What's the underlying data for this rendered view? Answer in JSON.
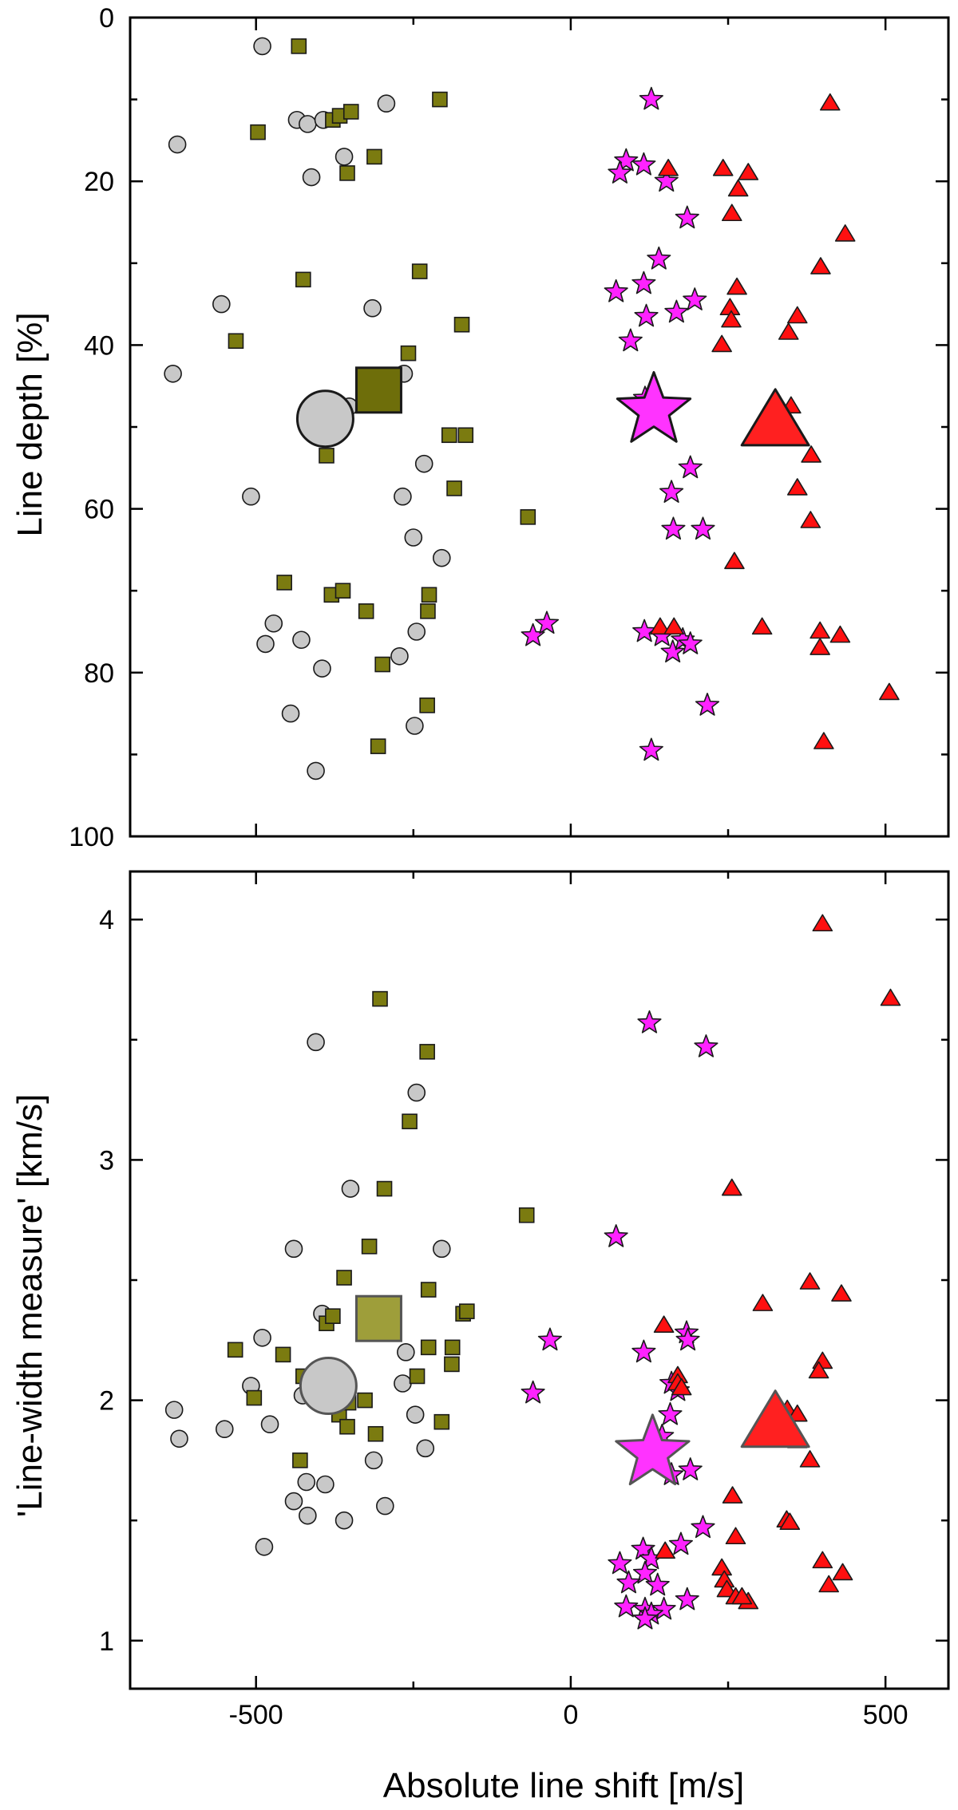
{
  "colors": {
    "circle": "#c8c8c8",
    "square": "#7b7b10",
    "star": "#ff22ff",
    "triangle": "#ff1010",
    "mean_circle": "#c8c8c8",
    "mean_square_top": "#6e6e0a",
    "mean_square_bottom": "#9e9e3a",
    "mean_star": "#ff33ff",
    "mean_triangle": "#ff2020"
  },
  "chart_data": [
    {
      "type": "scatter",
      "panel": "top",
      "xlabel": "",
      "ylabel": "Line depth [%]",
      "xlim": [
        -700,
        600
      ],
      "ylim": [
        100,
        0
      ],
      "y_inverted": true,
      "xticks": [
        -500,
        0,
        500
      ],
      "xtick_labels_visible": false,
      "yticks": [
        0,
        20,
        40,
        60,
        80,
        100
      ],
      "ytick_labels": [
        "0",
        "20",
        "40",
        "60",
        "80",
        "100"
      ],
      "grid": false,
      "series": [
        {
          "marker": "circle",
          "points": [
            [
              -490,
              3.5
            ],
            [
              -625,
              15.5
            ],
            [
              -435,
              12.5
            ],
            [
              -418,
              13
            ],
            [
              -393,
              12.5
            ],
            [
              -293,
              10.5
            ],
            [
              -360,
              17
            ],
            [
              -412,
              19.5
            ],
            [
              -555,
              35
            ],
            [
              -315,
              35.5
            ],
            [
              -632,
              43.5
            ],
            [
              -265,
              43.5
            ],
            [
              -352,
              47.5
            ],
            [
              -508,
              58.5
            ],
            [
              -267,
              58.5
            ],
            [
              -233,
              54.5
            ],
            [
              -250,
              63.5
            ],
            [
              -205,
              66
            ],
            [
              -472,
              74
            ],
            [
              -485,
              76.5
            ],
            [
              -428,
              76
            ],
            [
              -395,
              79.5
            ],
            [
              -272,
              78
            ],
            [
              -245,
              75
            ],
            [
              -445,
              85
            ],
            [
              -248,
              86.5
            ],
            [
              -405,
              92
            ]
          ]
        },
        {
          "marker": "square",
          "points": [
            [
              -432,
              3.5
            ],
            [
              -497,
              14
            ],
            [
              -378,
              12.5
            ],
            [
              -367,
              12
            ],
            [
              -349,
              11.5
            ],
            [
              -208,
              10
            ],
            [
              -312,
              17
            ],
            [
              -355,
              19
            ],
            [
              -425,
              32
            ],
            [
              -240,
              31
            ],
            [
              -532,
              39.5
            ],
            [
              -173,
              37.5
            ],
            [
              -258,
              41
            ],
            [
              -388,
              53.5
            ],
            [
              -193,
              51
            ],
            [
              -167,
              51
            ],
            [
              -185,
              57.5
            ],
            [
              -68,
              61
            ],
            [
              -455,
              69
            ],
            [
              -380,
              70.5
            ],
            [
              -362,
              70
            ],
            [
              -325,
              72.5
            ],
            [
              -225,
              70.5
            ],
            [
              -227,
              72.5
            ],
            [
              -299,
              79
            ],
            [
              -228,
              84
            ],
            [
              -306,
              89
            ]
          ]
        },
        {
          "marker": "star",
          "points": [
            [
              128,
              10
            ],
            [
              88,
              17.5
            ],
            [
              78,
              19
            ],
            [
              116,
              18
            ],
            [
              152,
              20
            ],
            [
              185,
              24.5
            ],
            [
              140,
              29.5
            ],
            [
              72,
              33.5
            ],
            [
              116,
              32.5
            ],
            [
              197,
              34.5
            ],
            [
              120,
              36.5
            ],
            [
              168,
              36
            ],
            [
              95,
              39.5
            ],
            [
              118,
              46.5
            ],
            [
              138,
              47.5
            ],
            [
              190,
              55
            ],
            [
              160,
              58
            ],
            [
              163,
              62.5
            ],
            [
              210,
              62.5
            ],
            [
              -60,
              75.5
            ],
            [
              -38,
              74
            ],
            [
              117,
              75
            ],
            [
              145,
              75.5
            ],
            [
              162,
              77.5
            ],
            [
              178,
              76
            ],
            [
              190,
              76.5
            ],
            [
              217,
              84
            ],
            [
              128,
              89.5
            ]
          ]
        },
        {
          "marker": "triangle",
          "points": [
            [
              412,
              10.5
            ],
            [
              155,
              18.5
            ],
            [
              242,
              18.5
            ],
            [
              282,
              19
            ],
            [
              266,
              21
            ],
            [
              256,
              24
            ],
            [
              436,
              26.5
            ],
            [
              397,
              30.5
            ],
            [
              264,
              33
            ],
            [
              253,
              35.5
            ],
            [
              255,
              37
            ],
            [
              360,
              36.5
            ],
            [
              240,
              40
            ],
            [
              346,
              38.5
            ],
            [
              350,
              47.5
            ],
            [
              337,
              48.5
            ],
            [
              382,
              53.5
            ],
            [
              360,
              57.5
            ],
            [
              381,
              61.5
            ],
            [
              260,
              66.5
            ],
            [
              304,
              74.5
            ],
            [
              142,
              74.5
            ],
            [
              164,
              74.5
            ],
            [
              396,
              75
            ],
            [
              428,
              75.5
            ],
            [
              396,
              77
            ],
            [
              506,
              82.5
            ],
            [
              402,
              88.5
            ]
          ]
        }
      ],
      "means": [
        {
          "marker": "circle",
          "x": -390,
          "y": 49
        },
        {
          "marker": "square",
          "x": -305,
          "y": 45.5
        },
        {
          "marker": "star",
          "x": 132,
          "y": 48
        },
        {
          "marker": "triangle",
          "x": 325,
          "y": 49.5
        }
      ]
    },
    {
      "type": "scatter",
      "panel": "bottom",
      "xlabel": "Absolute line shift [m/s]",
      "ylabel": "'Line-width measure' [km/s]",
      "xlim": [
        -700,
        600
      ],
      "ylim": [
        0.8,
        4.2
      ],
      "xticks": [
        -500,
        0,
        500
      ],
      "xtick_labels": [
        "-500",
        "0",
        "500"
      ],
      "yticks": [
        1,
        2,
        3,
        4
      ],
      "ytick_labels": [
        "1",
        "2",
        "3",
        "4"
      ],
      "grid": false,
      "series": [
        {
          "marker": "circle",
          "points": [
            [
              -405,
              3.49
            ],
            [
              -245,
              3.28
            ],
            [
              -350,
              2.88
            ],
            [
              -440,
              2.63
            ],
            [
              -205,
              2.63
            ],
            [
              -395,
              2.36
            ],
            [
              -490,
              2.26
            ],
            [
              -262,
              2.2
            ],
            [
              -508,
              2.06
            ],
            [
              -426,
              2.02
            ],
            [
              -267,
              2.07
            ],
            [
              -630,
              1.96
            ],
            [
              -622,
              1.84
            ],
            [
              -550,
              1.88
            ],
            [
              -478,
              1.9
            ],
            [
              -247,
              1.94
            ],
            [
              -231,
              1.8
            ],
            [
              -313,
              1.75
            ],
            [
              -420,
              1.66
            ],
            [
              -390,
              1.65
            ],
            [
              -440,
              1.58
            ],
            [
              -418,
              1.52
            ],
            [
              -360,
              1.5
            ],
            [
              -295,
              1.56
            ],
            [
              -487,
              1.39
            ]
          ]
        },
        {
          "marker": "square",
          "points": [
            [
              -303,
              3.67
            ],
            [
              -228,
              3.45
            ],
            [
              -256,
              3.16
            ],
            [
              -296,
              2.88
            ],
            [
              -70,
              2.77
            ],
            [
              -320,
              2.64
            ],
            [
              -360,
              2.51
            ],
            [
              -226,
              2.46
            ],
            [
              -388,
              2.32
            ],
            [
              -378,
              2.35
            ],
            [
              -171,
              2.36
            ],
            [
              -165,
              2.37
            ],
            [
              -533,
              2.21
            ],
            [
              -457,
              2.19
            ],
            [
              -226,
              2.22
            ],
            [
              -188,
              2.22
            ],
            [
              -189,
              2.15
            ],
            [
              -425,
              2.1
            ],
            [
              -244,
              2.1
            ],
            [
              -503,
              2.01
            ],
            [
              -368,
              1.94
            ],
            [
              -353,
              1.99
            ],
            [
              -327,
              2.0
            ],
            [
              -355,
              1.89
            ],
            [
              -310,
              1.86
            ],
            [
              -205,
              1.91
            ],
            [
              -430,
              1.75
            ]
          ]
        },
        {
          "marker": "star",
          "points": [
            [
              125,
              3.57
            ],
            [
              215,
              3.47
            ],
            [
              72,
              2.68
            ],
            [
              -33,
              2.25
            ],
            [
              116,
              2.2
            ],
            [
              184,
              2.28
            ],
            [
              186,
              2.25
            ],
            [
              -60,
              2.03
            ],
            [
              170,
              2.04
            ],
            [
              160,
              2.07
            ],
            [
              158,
              1.94
            ],
            [
              145,
              1.85
            ],
            [
              190,
              1.71
            ],
            [
              160,
              1.69
            ],
            [
              210,
              1.47
            ],
            [
              175,
              1.4
            ],
            [
              115,
              1.38
            ],
            [
              78,
              1.32
            ],
            [
              128,
              1.34
            ],
            [
              118,
              1.28
            ],
            [
              92,
              1.24
            ],
            [
              138,
              1.23
            ],
            [
              185,
              1.17
            ],
            [
              88,
              1.14
            ],
            [
              118,
              1.13
            ],
            [
              148,
              1.13
            ],
            [
              128,
              1.11
            ],
            [
              118,
              1.09
            ]
          ]
        },
        {
          "marker": "triangle",
          "points": [
            [
              400,
              3.98
            ],
            [
              508,
              3.67
            ],
            [
              256,
              2.88
            ],
            [
              380,
              2.49
            ],
            [
              430,
              2.44
            ],
            [
              305,
              2.4
            ],
            [
              148,
              2.31
            ],
            [
              170,
              2.1
            ],
            [
              170,
              2.07
            ],
            [
              176,
              2.05
            ],
            [
              400,
              2.16
            ],
            [
              394,
              2.12
            ],
            [
              344,
              1.96
            ],
            [
              360,
              1.94
            ],
            [
              360,
              1.83
            ],
            [
              380,
              1.75
            ],
            [
              257,
              1.6
            ],
            [
              343,
              1.5
            ],
            [
              348,
              1.49
            ],
            [
              262,
              1.43
            ],
            [
              150,
              1.37
            ],
            [
              400,
              1.33
            ],
            [
              240,
              1.3
            ],
            [
              432,
              1.28
            ],
            [
              244,
              1.25
            ],
            [
              410,
              1.23
            ],
            [
              248,
              1.21
            ],
            [
              262,
              1.18
            ],
            [
              282,
              1.16
            ],
            [
              272,
              1.18
            ]
          ]
        }
      ],
      "means": [
        {
          "marker": "circle",
          "x": -385,
          "y": 2.06
        },
        {
          "marker": "square",
          "x": -305,
          "y": 2.34
        },
        {
          "marker": "star",
          "x": 130,
          "y": 1.78
        },
        {
          "marker": "triangle",
          "x": 325,
          "y": 1.9
        }
      ]
    }
  ]
}
